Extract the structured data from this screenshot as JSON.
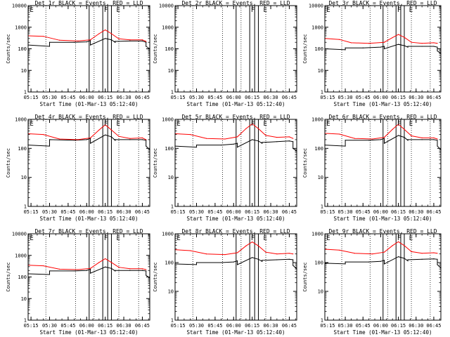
{
  "figure_layout": "3x3 grid of detector count-rate plots",
  "chart_data": [
    {
      "id": "det1r",
      "type": "line",
      "title": "Det 1r BLACK = Events, RED = LLD",
      "ylabel": "Counts/sec",
      "xlabel": "Start Time (01-Mar-13 05:12:40)",
      "ylim": [
        1,
        10000
      ],
      "yscale": "log",
      "ytick_labels": [
        "1",
        "10",
        "100",
        "1000",
        "10000"
      ],
      "xlim": [
        "05:12:40",
        "06:51:00"
      ],
      "xtick_labels": [
        "05:15",
        "05:30",
        "05:45",
        "06:00",
        "06:15",
        "06:30",
        "06:45"
      ],
      "flag_labels": [
        "E",
        "F",
        "E"
      ],
      "series": [
        {
          "name": "Events",
          "color": "#000000",
          "x": [
            "05:12:40",
            "05:30",
            "05:30",
            "05:50",
            "06:00",
            "06:03",
            "06:03",
            "06:15",
            "06:20",
            "06:23",
            "06:23",
            "06:35",
            "06:45",
            "06:48",
            "06:48",
            "06:51"
          ],
          "values": [
            150,
            130,
            200,
            200,
            210,
            240,
            150,
            300,
            260,
            200,
            220,
            230,
            230,
            200,
            130,
            100
          ]
        },
        {
          "name": "LLD",
          "color": "#ff0000",
          "x": [
            "05:12:40",
            "05:25",
            "05:38",
            "05:53",
            "06:03",
            "06:10",
            "06:15",
            "06:20",
            "06:26",
            "06:35",
            "06:45",
            "06:48"
          ],
          "values": [
            400,
            380,
            250,
            230,
            260,
            500,
            750,
            500,
            290,
            260,
            260,
            220
          ]
        }
      ]
    },
    {
      "id": "det2r",
      "type": "line",
      "title": "Det 2r BLACK = Events, RED = LLD",
      "ylabel": "Counts/sec",
      "xlabel": "Start Time (01-Mar-13 05:12:40)",
      "ylim": [
        1,
        10000
      ],
      "yscale": "log",
      "ytick_labels": [
        "1",
        "10",
        "100",
        "1000",
        "10000"
      ],
      "xlim": [
        "05:12:40",
        "06:51:00"
      ],
      "xtick_labels": [
        "05:15",
        "05:30",
        "05:45",
        "06:00",
        "06:15",
        "06:30",
        "06:45"
      ],
      "flag_labels": [
        "F",
        "E"
      ],
      "series": []
    },
    {
      "id": "det3r",
      "type": "line",
      "title": "Det 3r BLACK = Events, RED = LLD",
      "ylabel": "Counts/sec",
      "xlabel": "Start Time (01-Mar-13 05:12:40)",
      "ylim": [
        1,
        10000
      ],
      "yscale": "log",
      "ytick_labels": [
        "1",
        "10",
        "100",
        "1000",
        "10000"
      ],
      "xlim": [
        "05:12:40",
        "06:51:00"
      ],
      "xtick_labels": [
        "05:15",
        "05:30",
        "05:45",
        "06:00",
        "06:15",
        "06:30",
        "06:45"
      ],
      "flag_labels": [
        "E",
        "F",
        "E"
      ],
      "series": [
        {
          "name": "Events",
          "color": "#000000",
          "x": [
            "05:12:40",
            "05:30",
            "05:30",
            "05:45",
            "06:00",
            "06:03",
            "06:03",
            "06:15",
            "06:20",
            "06:23",
            "06:23",
            "06:35",
            "06:45",
            "06:48",
            "06:48",
            "06:51"
          ],
          "values": [
            100,
            90,
            110,
            110,
            120,
            130,
            100,
            160,
            140,
            120,
            130,
            130,
            130,
            120,
            80,
            60
          ]
        },
        {
          "name": "LLD",
          "color": "#ff0000",
          "x": [
            "05:12:40",
            "05:25",
            "05:35",
            "05:50",
            "06:03",
            "06:10",
            "06:15",
            "06:20",
            "06:26",
            "06:35",
            "06:45",
            "06:48"
          ],
          "values": [
            300,
            270,
            190,
            180,
            200,
            330,
            460,
            340,
            200,
            180,
            190,
            180
          ]
        }
      ]
    },
    {
      "id": "det4r",
      "type": "line",
      "title": "Det 4r BLACK = Events, RED = LLD",
      "ylabel": "Counts/sec",
      "xlabel": "Start Time (01-Mar-13 05:12:40)",
      "ylim": [
        1,
        1000
      ],
      "yscale": "log",
      "ytick_labels": [
        "1",
        "10",
        "100",
        "1000"
      ],
      "xlim": [
        "05:12:40",
        "06:51:00"
      ],
      "xtick_labels": [
        "05:15",
        "05:30",
        "05:45",
        "06:00",
        "06:15",
        "06:30",
        "06:45"
      ],
      "flag_labels": [
        "E",
        "F",
        "E"
      ],
      "series": [
        {
          "name": "Events",
          "color": "#000000",
          "x": [
            "05:12:40",
            "05:30",
            "05:30",
            "05:50",
            "06:00",
            "06:03",
            "06:03",
            "06:15",
            "06:20",
            "06:23",
            "06:23",
            "06:35",
            "06:45",
            "06:48",
            "06:48",
            "06:51"
          ],
          "values": [
            130,
            120,
            200,
            190,
            200,
            220,
            150,
            290,
            250,
            190,
            200,
            200,
            200,
            190,
            120,
            90
          ]
        },
        {
          "name": "LLD",
          "color": "#ff0000",
          "x": [
            "05:12:40",
            "05:25",
            "05:38",
            "05:53",
            "06:03",
            "06:10",
            "06:15",
            "06:20",
            "06:26",
            "06:35",
            "06:45",
            "06:48"
          ],
          "values": [
            320,
            300,
            210,
            200,
            230,
            430,
            650,
            430,
            260,
            220,
            230,
            200
          ]
        }
      ]
    },
    {
      "id": "det5r",
      "type": "line",
      "title": "Det 5r BLACK = Events, RED = LLD",
      "ylabel": "Counts/sec",
      "xlabel": "Start Time (01-Mar-13 05:12:40)",
      "ylim": [
        1,
        1000
      ],
      "yscale": "log",
      "ytick_labels": [
        "1",
        "10",
        "100",
        "1000"
      ],
      "xlim": [
        "05:12:40",
        "06:51:00"
      ],
      "xtick_labels": [
        "05:15",
        "05:30",
        "05:45",
        "06:00",
        "06:15",
        "06:30",
        "06:45"
      ],
      "flag_labels": [
        "E",
        "F",
        "E"
      ],
      "series": [
        {
          "name": "Events",
          "color": "#000000",
          "x": [
            "05:12:40",
            "05:30",
            "05:30",
            "05:50",
            "06:00",
            "06:03",
            "06:03",
            "06:15",
            "06:20",
            "06:23",
            "06:23",
            "06:35",
            "06:45",
            "06:48",
            "06:48",
            "06:51"
          ],
          "values": [
            120,
            110,
            130,
            130,
            140,
            150,
            110,
            200,
            180,
            150,
            160,
            170,
            180,
            170,
            100,
            80
          ]
        },
        {
          "name": "LLD",
          "color": "#ff0000",
          "x": [
            "05:12:40",
            "05:25",
            "05:38",
            "05:53",
            "06:03",
            "06:10",
            "06:15",
            "06:20",
            "06:26",
            "06:35",
            "06:45",
            "06:48"
          ],
          "values": [
            320,
            300,
            220,
            210,
            250,
            480,
            700,
            480,
            280,
            240,
            250,
            220
          ]
        }
      ]
    },
    {
      "id": "det6r",
      "type": "line",
      "title": "Det 6r BLACK = Events, RED = LLD",
      "ylabel": "Counts/sec",
      "xlabel": "Start Time (01-Mar-13 05:12:40)",
      "ylim": [
        1,
        1000
      ],
      "yscale": "log",
      "ytick_labels": [
        "1",
        "10",
        "100",
        "1000"
      ],
      "xlim": [
        "05:12:40",
        "06:51:00"
      ],
      "xtick_labels": [
        "05:15",
        "05:30",
        "05:45",
        "06:00",
        "06:15",
        "06:30",
        "06:45"
      ],
      "flag_labels": [
        "E",
        "F",
        "E"
      ],
      "series": [
        {
          "name": "Events",
          "color": "#000000",
          "x": [
            "05:12:40",
            "05:30",
            "05:30",
            "05:50",
            "06:00",
            "06:03",
            "06:03",
            "06:15",
            "06:20",
            "06:23",
            "06:23",
            "06:35",
            "06:45",
            "06:48",
            "06:48",
            "06:51"
          ],
          "values": [
            130,
            120,
            190,
            190,
            200,
            220,
            150,
            280,
            240,
            190,
            200,
            200,
            200,
            190,
            120,
            90
          ]
        },
        {
          "name": "LLD",
          "color": "#ff0000",
          "x": [
            "05:12:40",
            "05:25",
            "05:38",
            "05:53",
            "06:03",
            "06:10",
            "06:15",
            "06:20",
            "06:26",
            "06:35",
            "06:45",
            "06:48"
          ],
          "values": [
            330,
            310,
            220,
            210,
            240,
            450,
            680,
            450,
            270,
            230,
            230,
            210
          ]
        }
      ]
    },
    {
      "id": "det7r",
      "type": "line",
      "title": "Det 7r BLACK = Events, RED = LLD",
      "ylabel": "Counts/sec",
      "xlabel": "Start Time (01-Mar-13 05:12:40)",
      "ylim": [
        1,
        10000
      ],
      "yscale": "log",
      "ytick_labels": [
        "1",
        "10",
        "100",
        "1000",
        "10000"
      ],
      "xlim": [
        "05:12:40",
        "06:51:00"
      ],
      "xtick_labels": [
        "05:15",
        "05:30",
        "05:45",
        "06:00",
        "06:15",
        "06:30",
        "06:45"
      ],
      "flag_labels": [
        "E",
        "F",
        "E"
      ],
      "series": [
        {
          "name": "Events",
          "color": "#000000",
          "x": [
            "05:12:40",
            "05:30",
            "05:30",
            "05:50",
            "06:00",
            "06:03",
            "06:03",
            "06:15",
            "06:20",
            "06:23",
            "06:23",
            "06:35",
            "06:45",
            "06:48",
            "06:48",
            "06:51"
          ],
          "values": [
            140,
            130,
            190,
            190,
            200,
            230,
            150,
            290,
            250,
            190,
            200,
            200,
            200,
            190,
            120,
            90
          ]
        },
        {
          "name": "LLD",
          "color": "#ff0000",
          "x": [
            "05:12:40",
            "05:25",
            "05:38",
            "05:53",
            "06:03",
            "06:10",
            "06:15",
            "06:20",
            "06:26",
            "06:35",
            "06:45",
            "06:48"
          ],
          "values": [
            350,
            330,
            230,
            220,
            250,
            470,
            700,
            470,
            280,
            240,
            240,
            220
          ]
        }
      ]
    },
    {
      "id": "det8r",
      "type": "line",
      "title": "Det 8r BLACK = Events, RED = LLD",
      "ylabel": "Counts/sec",
      "xlabel": "Start Time (01-Mar-13 05:12:40)",
      "ylim": [
        1,
        1000
      ],
      "yscale": "log",
      "ytick_labels": [
        "1",
        "10",
        "100",
        "1000"
      ],
      "xlim": [
        "05:12:40",
        "06:51:00"
      ],
      "xtick_labels": [
        "05:15",
        "05:30",
        "05:45",
        "06:00",
        "06:15",
        "06:30",
        "06:45"
      ],
      "flag_labels": [
        "E",
        "F",
        "E"
      ],
      "series": [
        {
          "name": "Events",
          "color": "#000000",
          "x": [
            "05:12:40",
            "05:30",
            "05:30",
            "05:50",
            "06:00",
            "06:03",
            "06:03",
            "06:15",
            "06:20",
            "06:23",
            "06:23",
            "06:35",
            "06:45",
            "06:48",
            "06:48",
            "06:51"
          ],
          "values": [
            90,
            85,
            100,
            100,
            105,
            115,
            85,
            150,
            130,
            110,
            120,
            125,
            130,
            125,
            80,
            60
          ]
        },
        {
          "name": "LLD",
          "color": "#ff0000",
          "x": [
            "05:12:40",
            "05:25",
            "05:38",
            "05:53",
            "06:03",
            "06:10",
            "06:15",
            "06:20",
            "06:26",
            "06:35",
            "06:45",
            "06:48"
          ],
          "values": [
            280,
            260,
            200,
            190,
            220,
            380,
            520,
            380,
            230,
            200,
            210,
            200
          ]
        }
      ]
    },
    {
      "id": "det9r",
      "type": "line",
      "title": "Det 9r BLACK = Events, RED = LLD",
      "ylabel": "Counts/sec",
      "xlabel": "Start Time (01-Mar-13 05:12:40)",
      "ylim": [
        1,
        1000
      ],
      "yscale": "log",
      "ytick_labels": [
        "1",
        "10",
        "100",
        "1000"
      ],
      "xlim": [
        "05:12:40",
        "06:51:00"
      ],
      "xtick_labels": [
        "05:15",
        "05:30",
        "05:45",
        "06:00",
        "06:15",
        "06:30",
        "06:45"
      ],
      "flag_labels": [
        "E",
        "F",
        "E"
      ],
      "series": [
        {
          "name": "Events",
          "color": "#000000",
          "x": [
            "05:12:40",
            "05:30",
            "05:30",
            "05:50",
            "06:00",
            "06:03",
            "06:03",
            "06:15",
            "06:20",
            "06:23",
            "06:23",
            "06:35",
            "06:45",
            "06:48",
            "06:48",
            "06:51"
          ],
          "values": [
            95,
            90,
            105,
            105,
            110,
            120,
            90,
            160,
            140,
            115,
            125,
            130,
            135,
            130,
            85,
            65
          ]
        },
        {
          "name": "LLD",
          "color": "#ff0000",
          "x": [
            "05:12:40",
            "05:25",
            "05:38",
            "05:53",
            "06:03",
            "06:10",
            "06:15",
            "06:20",
            "06:26",
            "06:35",
            "06:45",
            "06:48"
          ],
          "values": [
            290,
            270,
            210,
            200,
            230,
            390,
            530,
            390,
            240,
            210,
            220,
            210
          ]
        }
      ]
    }
  ]
}
